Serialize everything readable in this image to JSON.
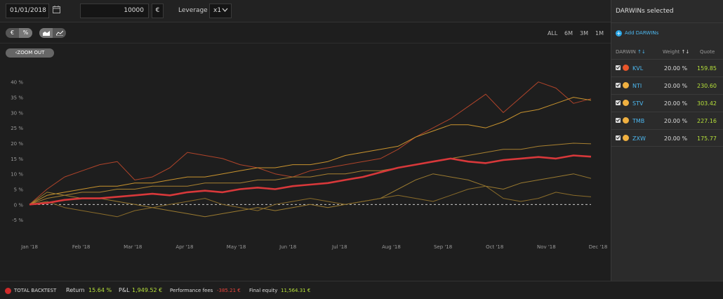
{
  "toolbar": {
    "start_date": "01/01/2018",
    "amount": "10000",
    "currency": "€",
    "leverage_label": "Leverage",
    "leverage_value": "x1"
  },
  "chart_toolbar": {
    "unit_options": [
      "€",
      "%"
    ],
    "unit_selected": "%",
    "ranges": [
      "ALL",
      "6M",
      "3M",
      "1M"
    ],
    "zoom_out_label": "ZOOM OUT"
  },
  "panel": {
    "title": "DARWINs selected",
    "add_label": "Add DARWINs",
    "col_darwin": "DARWIN",
    "col_weight": "Weight",
    "col_quote": "Quote",
    "darwins": [
      {
        "name": "KVL",
        "weight": "20.00 %",
        "quote": "159.85",
        "color": "#e8552a"
      },
      {
        "name": "NTI",
        "weight": "20.00 %",
        "quote": "230.60",
        "color": "#f0b040"
      },
      {
        "name": "STV",
        "weight": "20.00 %",
        "quote": "303.42",
        "color": "#f0b040"
      },
      {
        "name": "TMB",
        "weight": "20.00 %",
        "quote": "227.16",
        "color": "#f0b040"
      },
      {
        "name": "ZXW",
        "weight": "20.00 %",
        "quote": "175.77",
        "color": "#f0b040"
      }
    ]
  },
  "footer": {
    "total_label": "TOTAL BACKTEST",
    "return_label": "Return",
    "return_value": "15.64 %",
    "pnl_label": "P&L",
    "pnl_value": "1,949.52 €",
    "fees_label": "Performance fees",
    "fees_value": "-385.21 €",
    "equity_label": "Final equity",
    "equity_value": "11,564.31 €"
  },
  "chart_data": {
    "type": "line",
    "x_labels": [
      "Jan '18",
      "Feb '18",
      "Mar '18",
      "Apr '18",
      "May '18",
      "Jun '18",
      "Jul '18",
      "Aug '18",
      "Sep '18",
      "Oct '18",
      "Nov '18",
      "Dec '18"
    ],
    "y_ticks": [
      "40 %",
      "35 %",
      "30 %",
      "25 %",
      "20 %",
      "15 %",
      "10 %",
      "5 %",
      "0 %",
      "-5 %"
    ],
    "y_values": [
      40,
      35,
      30,
      25,
      20,
      15,
      10,
      5,
      0,
      -5
    ],
    "ylim": [
      -10,
      42
    ],
    "series": [
      {
        "name": "TOTAL BACKTEST",
        "color": "#d8383a",
        "width": 2.6,
        "values": [
          0,
          0.5,
          1.5,
          2,
          2,
          2.5,
          3,
          3.5,
          3,
          4,
          4.5,
          4,
          5,
          5.5,
          5,
          6,
          6.5,
          7,
          8,
          9,
          10.5,
          12,
          13,
          14,
          15,
          14,
          13.5,
          14.5,
          15,
          15.5,
          15,
          16,
          15.6
        ]
      },
      {
        "name": "KVL",
        "color": "#b0442a",
        "width": 1,
        "values": [
          0,
          5,
          9,
          11,
          13,
          14,
          8,
          9,
          12,
          17,
          16,
          15,
          13,
          12,
          10,
          9,
          11,
          12,
          13,
          14,
          15,
          18,
          22,
          25,
          28,
          32,
          36,
          30,
          35,
          40,
          38,
          33,
          34.5
        ]
      },
      {
        "name": "NTI",
        "color": "#c8932e",
        "width": 1,
        "values": [
          0,
          3,
          4,
          5,
          6,
          6,
          7,
          7,
          8,
          9,
          9,
          10,
          11,
          12,
          12,
          13,
          13,
          14,
          16,
          17,
          18,
          19,
          22,
          24,
          26,
          26,
          25,
          27,
          30,
          31,
          33,
          35,
          34
        ]
      },
      {
        "name": "STV",
        "color": "#a88030",
        "width": 1,
        "values": [
          0,
          2,
          3,
          4,
          4,
          5,
          5,
          6,
          6,
          6,
          7,
          7,
          7,
          8,
          8,
          9,
          9,
          10,
          10,
          11,
          11,
          12,
          13,
          14,
          15,
          16,
          17,
          18,
          18,
          19,
          19.5,
          20,
          19.8
        ]
      },
      {
        "name": "TMB",
        "color": "#9a7a30",
        "width": 1,
        "values": [
          0,
          4,
          3,
          2,
          2,
          1,
          0,
          -1,
          -2,
          -3,
          -4,
          -3,
          -2,
          -1,
          -2,
          -1,
          0,
          -1,
          0,
          1,
          2,
          5,
          8,
          10,
          9,
          8,
          6,
          5,
          7,
          8,
          9,
          10,
          8.5
        ]
      },
      {
        "name": "ZXW",
        "color": "#8a6c2a",
        "width": 1,
        "values": [
          0,
          1,
          -1,
          -2,
          -3,
          -4,
          -2,
          -1,
          0,
          1,
          2,
          0,
          -1,
          -2,
          0,
          1,
          2,
          1,
          0,
          1,
          2,
          3,
          2,
          1,
          3,
          5,
          6,
          2,
          1,
          2,
          4,
          3,
          2.5
        ]
      }
    ]
  }
}
